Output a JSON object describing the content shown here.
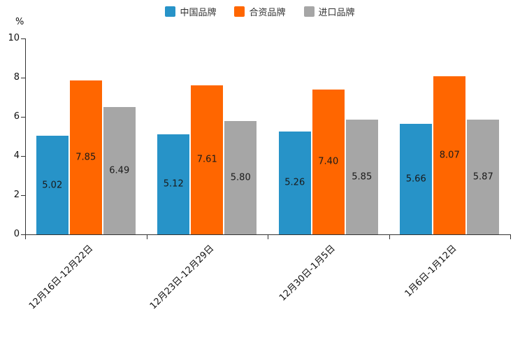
{
  "chart_data": {
    "type": "bar",
    "title": "",
    "unit_label": "%",
    "categories": [
      "12月16日-12月22日",
      "12月23日-12月29日",
      "12月30日-1月5日",
      "1月6日-1月12日"
    ],
    "series": [
      {
        "name": "中国品牌",
        "color": "#2793C8",
        "values": [
          5.02,
          5.12,
          5.26,
          5.66
        ]
      },
      {
        "name": "合资品牌",
        "color": "#FF6600",
        "values": [
          7.85,
          7.61,
          7.4,
          8.07
        ]
      },
      {
        "name": "进口品牌",
        "color": "#A6A6A6",
        "values": [
          6.49,
          5.8,
          5.85,
          5.87
        ]
      }
    ],
    "ylim": [
      0,
      10
    ],
    "yticks": [
      0,
      2,
      4,
      6,
      8,
      10
    ],
    "grid": false,
    "legend_position": "top-center",
    "value_label_decimals": 2
  }
}
